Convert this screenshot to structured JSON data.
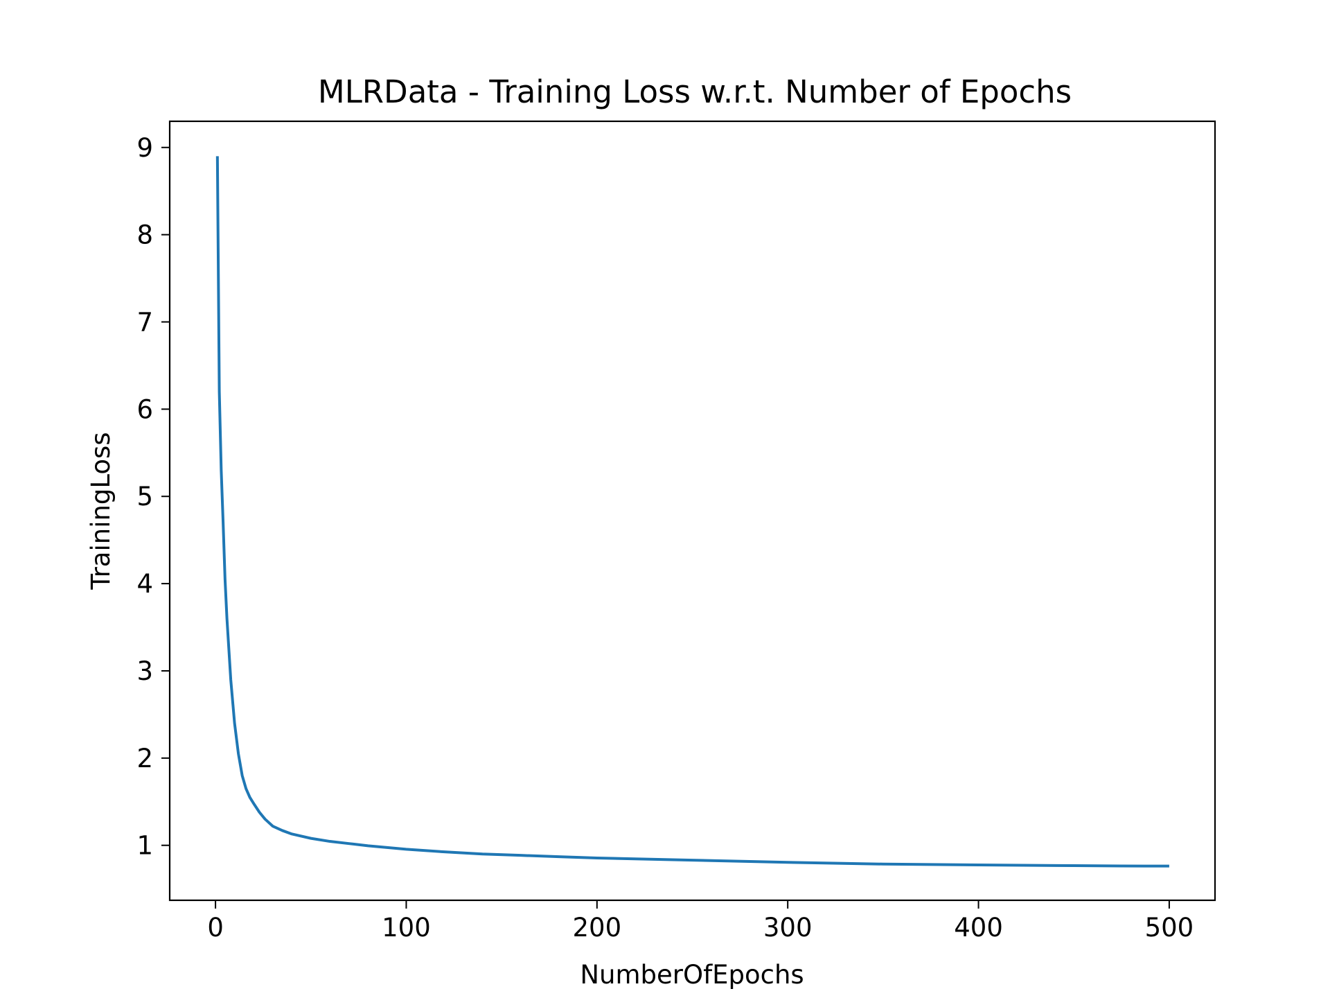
{
  "chart_data": {
    "type": "line",
    "title": "MLRData - Training Loss w.r.t. Number of Epochs",
    "xlabel": "NumberOfEpochs",
    "ylabel": "TrainingLoss",
    "xlim": [
      -24,
      524
    ],
    "ylim": [
      0.37,
      9.3
    ],
    "xticks": [
      0,
      100,
      200,
      300,
      400,
      500
    ],
    "yticks": [
      1,
      2,
      3,
      4,
      5,
      6,
      7,
      8,
      9
    ],
    "grid": false,
    "legend": "none",
    "series": [
      {
        "color": "#1f77b4",
        "x": [
          1,
          2,
          3,
          4,
          5,
          6,
          8,
          10,
          12,
          14,
          16,
          18,
          20,
          23,
          26,
          30,
          35,
          40,
          50,
          60,
          70,
          80,
          100,
          120,
          140,
          160,
          180,
          200,
          250,
          300,
          350,
          400,
          450,
          475,
          500
        ],
        "y": [
          8.9,
          6.2,
          5.3,
          4.7,
          4.05,
          3.6,
          2.9,
          2.4,
          2.05,
          1.8,
          1.65,
          1.55,
          1.48,
          1.38,
          1.3,
          1.22,
          1.17,
          1.13,
          1.08,
          1.045,
          1.02,
          0.995,
          0.955,
          0.925,
          0.9,
          0.885,
          0.87,
          0.855,
          0.83,
          0.805,
          0.785,
          0.775,
          0.767,
          0.763,
          0.762
        ]
      }
    ]
  }
}
